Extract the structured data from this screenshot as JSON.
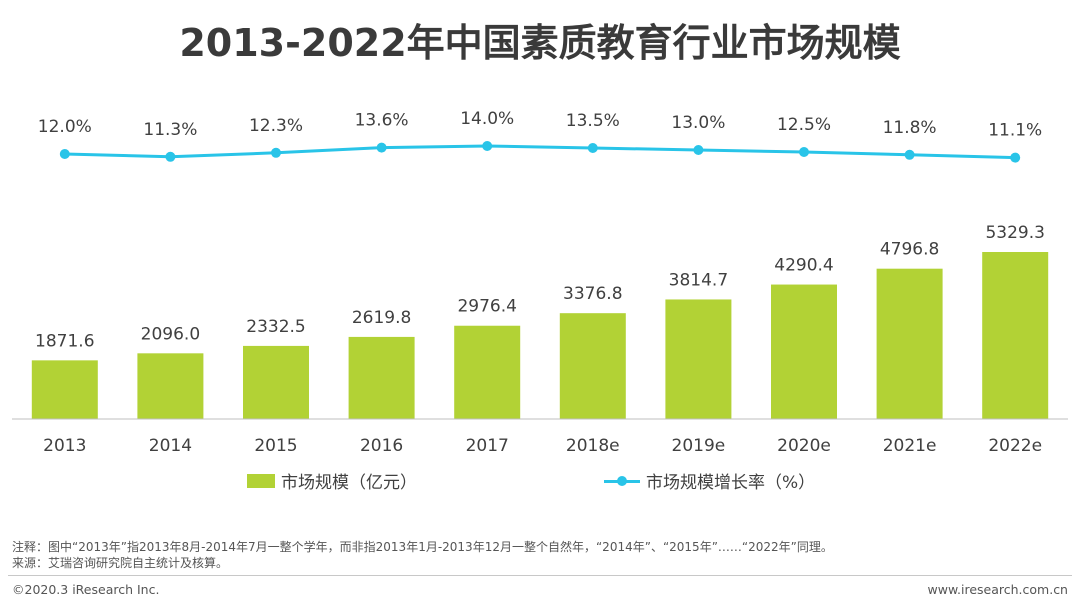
{
  "title": "2013-2022年中国素质教育行业市场规模",
  "chart_data": {
    "type": "bar+line",
    "title": "2013-2022年中国素质教育行业市场规模",
    "categories": [
      "2013",
      "2014",
      "2015",
      "2016",
      "2017",
      "2018e",
      "2019e",
      "2020e",
      "2021e",
      "2022e"
    ],
    "series": [
      {
        "name": "市场规模（亿元）",
        "type": "bar",
        "values": [
          1871.6,
          2096.0,
          2332.5,
          2619.8,
          2976.4,
          3376.8,
          3814.7,
          4290.4,
          4796.8,
          5329.3
        ],
        "labels": [
          "1871.6",
          "2096.0",
          "2332.5",
          "2619.8",
          "2976.4",
          "3376.8",
          "3814.7",
          "4290.4",
          "4796.8",
          "5329.3"
        ],
        "color": "#b2d235"
      },
      {
        "name": "市场规模增长率（%）",
        "type": "line",
        "values": [
          12.0,
          11.3,
          12.3,
          13.6,
          14.0,
          13.5,
          13.0,
          12.5,
          11.8,
          11.1
        ],
        "labels": [
          "12.0%",
          "11.3%",
          "12.3%",
          "13.6%",
          "14.0%",
          "13.5%",
          "13.0%",
          "12.5%",
          "11.8%",
          "11.1%"
        ],
        "color": "#29c4e8"
      }
    ],
    "legend": "bottom",
    "grid": false
  },
  "legend": {
    "bar_label": "市场规模（亿元）",
    "line_label": "市场规模增长率（%）"
  },
  "notes": {
    "note": "注释：图中“2013年”指2013年8月-2014年7月一整个学年，而非指2013年1月-2013年12月一整个自然年，“2014年”、“2015年”……“2022年”同理。",
    "source": "来源：艾瑞咨询研究院自主统计及核算。"
  },
  "footer": {
    "copyright": "©2020.3 iResearch Inc.",
    "website": "www.iresearch.com.cn"
  }
}
